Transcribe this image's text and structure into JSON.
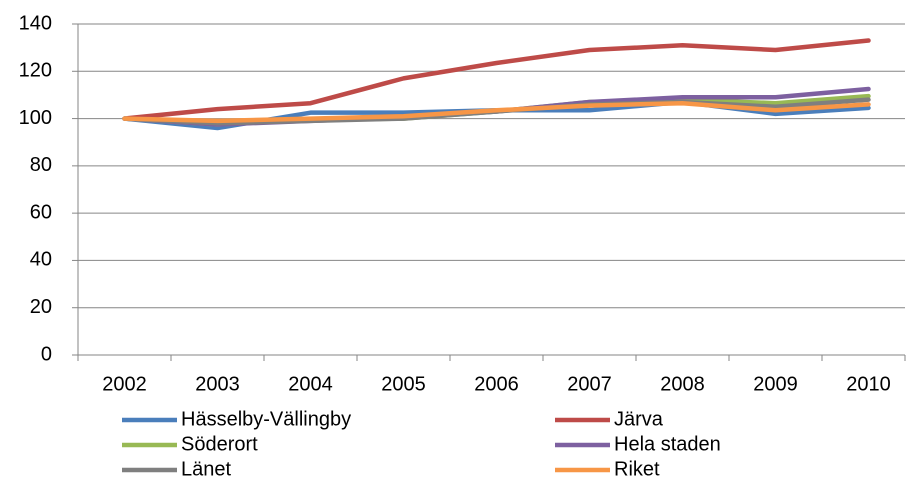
{
  "chart_data": {
    "type": "line",
    "categories": [
      "2002",
      "2003",
      "2004",
      "2005",
      "2006",
      "2007",
      "2008",
      "2009",
      "2010"
    ],
    "series": [
      {
        "name": "Hässelby-Vällingby",
        "color": "#4a7ebb",
        "values": [
          100,
          96,
          102.5,
          102.5,
          103.5,
          103.5,
          107,
          102,
          104.5
        ]
      },
      {
        "name": "Järva",
        "color": "#be4b48",
        "values": [
          100,
          104,
          106.5,
          117,
          123.5,
          129,
          131,
          129,
          133
        ]
      },
      {
        "name": "Söderort",
        "color": "#98b954",
        "values": [
          100,
          97.5,
          99.5,
          100,
          103,
          107,
          108,
          106.5,
          109.5
        ]
      },
      {
        "name": "Hela staden",
        "color": "#7d60a0",
        "values": [
          100,
          97.5,
          99,
          100.5,
          103,
          107,
          109,
          109,
          112.5
        ]
      },
      {
        "name": "Länet",
        "color": "#7f7f7f",
        "values": [
          100,
          98,
          99,
          100,
          103,
          106,
          107,
          105,
          108
        ]
      },
      {
        "name": "Riket",
        "color": "#f79646",
        "values": [
          100,
          99,
          100,
          101,
          103.5,
          105.5,
          106.5,
          103.5,
          106
        ]
      }
    ],
    "ylim": [
      0,
      140
    ],
    "yticks": [
      0,
      20,
      40,
      60,
      80,
      100,
      120,
      140
    ],
    "grid": true,
    "legend": "bottom"
  }
}
